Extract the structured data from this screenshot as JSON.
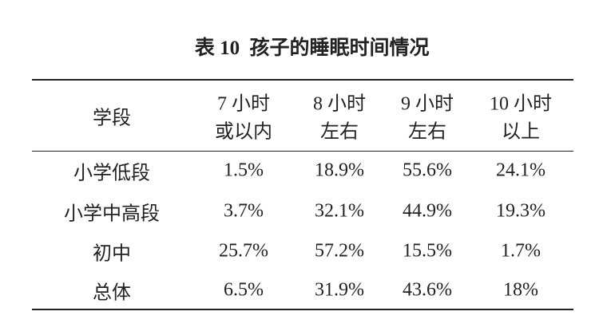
{
  "title": {
    "label": "表 10",
    "text": "孩子的睡眠时间情况"
  },
  "table": {
    "header": [
      [
        "学段"
      ],
      [
        "7 小时",
        "或以内"
      ],
      [
        "8 小时",
        "左右"
      ],
      [
        "9 小时",
        "左右"
      ],
      [
        "10 小时",
        "以上"
      ]
    ],
    "rows": [
      [
        "小学低段",
        "1.5%",
        "18.9%",
        "55.6%",
        "24.1%"
      ],
      [
        "小学中高段",
        "3.7%",
        "32.1%",
        "44.9%",
        "19.3%"
      ],
      [
        "初中",
        "25.7%",
        "57.2%",
        "15.5%",
        "1.7%"
      ],
      [
        "总体",
        "6.5%",
        "31.9%",
        "43.6%",
        "18%"
      ]
    ]
  }
}
